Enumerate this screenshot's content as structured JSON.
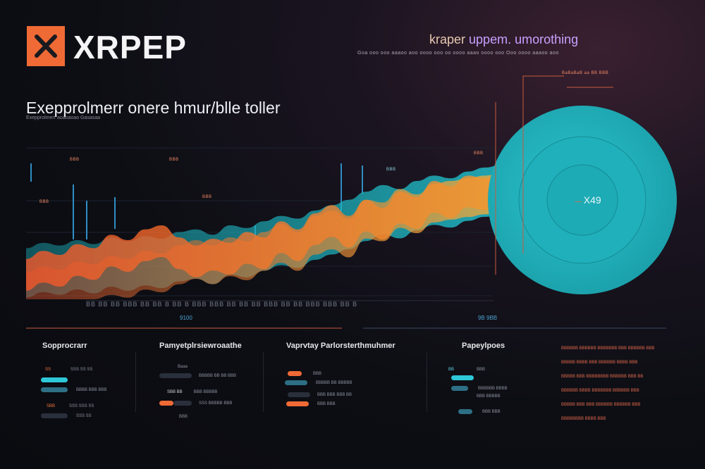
{
  "header": {
    "brand": "XRPEP",
    "tagline_first": "kraper",
    "tagline_rest": " uppem. umorothing",
    "sub_line": "Goa ooo ooo aaaoo aoo  oooo ooo oo oooo aaao oooo ooo Ooo  oooo aaaoo aoo"
  },
  "hero": {
    "headline": "Exepprolmerr onere hmur/blle toller",
    "headline_sub": "Exepprolmerr aoaoaoao Gasasaa"
  },
  "chart": {
    "annotations": {
      "a1": "BBB",
      "a2": "BBB",
      "a3": "BBB",
      "a4": "BBB",
      "a5": "BBB",
      "a6": "BBB",
      "top_right": "BaBaBaB aa BB BBB"
    },
    "circle_label": "X49",
    "tick_row": "BB BB BB BBB  BB BB B BB B  BBB BBB BB BB  BB BBB BB BB BBB BBB BB B",
    "axis_label_left": "9100",
    "axis_label_right": "9B 9BB",
    "colors": {
      "orange": "#f06a35",
      "cyan": "#1fb5c0",
      "amber": "#f2a33a"
    },
    "chart_data": {
      "type": "area",
      "title": "Exepprolmerr onere hmur/blle toller",
      "x": [
        0,
        1,
        2,
        3,
        4,
        5,
        6,
        7,
        8,
        9,
        10,
        11,
        12,
        13,
        14,
        15,
        16,
        17,
        18,
        19,
        20,
        21,
        22,
        23,
        24,
        25,
        26,
        27,
        28,
        29,
        30
      ],
      "series": [
        {
          "name": "cyan",
          "values": [
            38,
            42,
            40,
            44,
            41,
            46,
            43,
            47,
            45,
            50,
            52,
            48,
            55,
            53,
            58,
            62,
            60,
            66,
            70,
            74,
            80,
            85,
            82,
            88,
            92,
            90,
            95,
            98,
            100,
            100,
            100
          ]
        },
        {
          "name": "orange",
          "values": [
            30,
            36,
            33,
            41,
            38,
            48,
            44,
            52,
            55,
            46,
            40,
            45,
            42,
            50,
            46,
            58,
            52,
            64,
            70,
            62,
            74,
            68,
            80,
            76,
            88,
            84,
            92,
            90,
            95,
            96,
            97
          ]
        },
        {
          "name": "amber",
          "values": [
            20,
            24,
            22,
            28,
            26,
            32,
            30,
            36,
            34,
            40,
            44,
            40,
            46,
            43,
            50,
            56,
            50,
            62,
            66,
            60,
            74,
            72,
            82,
            78,
            86,
            88,
            90,
            92,
            94,
            95,
            96
          ]
        }
      ],
      "ylim": [
        0,
        110
      ]
    }
  },
  "panels": [
    {
      "title": "Sopprocrarr",
      "rows": [
        {
          "left": "SS",
          "label": "SSS SS SS"
        },
        {
          "left": "",
          "label": "BBBB BBB BBB"
        },
        {
          "left": "SBB",
          "label": "SSS SSS SS"
        },
        {
          "left": "",
          "label": "SSS SS"
        }
      ]
    },
    {
      "title": "Pamyetplrsiewroaathe",
      "rows": [
        {
          "left": "",
          "label": "Baaa"
        },
        {
          "left": "",
          "label": "BBBBB BB BB BBB"
        },
        {
          "left": "SBB BB",
          "label": "BBB BBBBB"
        },
        {
          "left": "",
          "label": "SSS BBBBB BBB"
        },
        {
          "left": "",
          "label": "BBB"
        }
      ]
    },
    {
      "title": "Vaprvtay Parlorsterthmuhmer",
      "rows": [
        {
          "left": "",
          "label": "BBB"
        },
        {
          "left": "",
          "label": "BBBBB BB BBBBB"
        },
        {
          "left": "",
          "label": "BBB BBB BBB BB"
        },
        {
          "left": "",
          "label": "BBB BBB"
        }
      ]
    },
    {
      "title": "Papeylpoes",
      "rows": [
        {
          "left": "BB",
          "label": "BBB"
        },
        {
          "left": "",
          "label": "BBBBBB BBBB"
        },
        {
          "left": "",
          "label": "BBB BBBBB"
        },
        {
          "left": "",
          "label": "BBB BBB"
        }
      ]
    }
  ],
  "notes": [
    "BBBBBB BBBBBB BBBBBBB BBB BBBBBB BBB",
    "BBBBB BBBB BBB BBBBBB BBBB BBB",
    "BBBBB BBB BBBBBBBB BBBBBB BBB BB",
    "BBBBBB BBBB BBBBBBB BBBBBB BBB",
    "BBBBB BBB BBB BBBBBB BBBBBB BBB",
    "BBBBBBBB BBBB BBB"
  ]
}
